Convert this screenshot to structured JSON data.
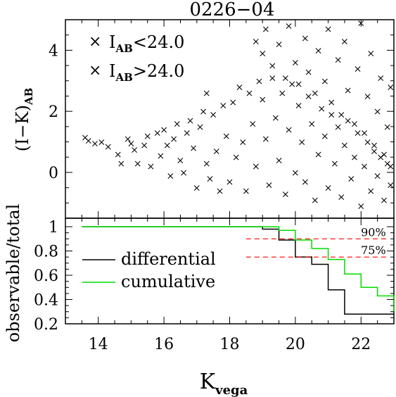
{
  "chart_data": [
    {
      "type": "scatter",
      "title": "0226−04",
      "ylabel": "(I−K)",
      "ylabel_sub": "AB",
      "xlim": [
        13,
        23
      ],
      "ylim": [
        -1.5,
        5
      ],
      "yticks": [
        "4",
        "2",
        "0"
      ],
      "ytick_values": [
        4,
        2,
        0
      ],
      "legend": [
        {
          "label": "I",
          "sub": "AB",
          "rest": "<24.0",
          "color": "#000000"
        },
        {
          "label": "I",
          "sub": "AB",
          "rest": ">24.0",
          "color": "#ff0000"
        }
      ],
      "series": [
        {
          "name": "I_AB<24.0",
          "color": "#000000",
          "points": [
            [
              13.6,
              1.15
            ],
            [
              13.7,
              1.05
            ],
            [
              13.9,
              0.95
            ],
            [
              14.1,
              1.0
            ],
            [
              14.3,
              0.85
            ],
            [
              14.6,
              0.6
            ],
            [
              14.7,
              0.3
            ],
            [
              14.9,
              1.1
            ],
            [
              15.0,
              0.95
            ],
            [
              15.1,
              0.75
            ],
            [
              15.2,
              0.3
            ],
            [
              15.4,
              0.9
            ],
            [
              15.5,
              1.2
            ],
            [
              15.6,
              0.2
            ],
            [
              15.8,
              1.3
            ],
            [
              15.9,
              0.55
            ],
            [
              16.0,
              1.4
            ],
            [
              16.1,
              0.9
            ],
            [
              16.2,
              -0.1
            ],
            [
              16.3,
              1.1
            ],
            [
              16.4,
              1.6
            ],
            [
              16.5,
              0.4
            ],
            [
              16.6,
              0.0
            ],
            [
              16.7,
              1.3
            ],
            [
              16.8,
              1.7
            ],
            [
              16.9,
              0.8
            ],
            [
              17.0,
              -0.5
            ],
            [
              17.1,
              1.5
            ],
            [
              17.2,
              2.0
            ],
            [
              17.3,
              2.6
            ],
            [
              17.3,
              0.3
            ],
            [
              17.4,
              -0.2
            ],
            [
              17.5,
              1.9
            ],
            [
              17.6,
              0.7
            ],
            [
              17.7,
              -0.6
            ],
            [
              17.8,
              2.2
            ],
            [
              17.9,
              1.2
            ],
            [
              18.0,
              -0.3
            ],
            [
              18.1,
              2.3
            ],
            [
              18.2,
              0.5
            ],
            [
              18.3,
              2.8
            ],
            [
              18.4,
              1.0
            ],
            [
              18.5,
              -0.6
            ],
            [
              18.6,
              2.6
            ],
            [
              18.7,
              1.6
            ],
            [
              18.8,
              0.2
            ],
            [
              18.9,
              3.0
            ],
            [
              19.0,
              2.4
            ],
            [
              19.1,
              1.1
            ],
            [
              19.2,
              -0.4
            ],
            [
              19.3,
              3.1
            ],
            [
              19.4,
              1.8
            ],
            [
              19.5,
              0.4
            ],
            [
              19.6,
              2.6
            ],
            [
              19.7,
              -0.7
            ],
            [
              19.8,
              1.4
            ],
            [
              19.9,
              2.9
            ],
            [
              20.0,
              0.0
            ],
            [
              20.1,
              2.2
            ],
            [
              20.2,
              1.0
            ],
            [
              20.3,
              -0.3
            ],
            [
              20.4,
              2.5
            ],
            [
              20.5,
              1.6
            ],
            [
              20.6,
              -0.9
            ],
            [
              20.7,
              0.6
            ],
            [
              20.8,
              2.1
            ],
            [
              20.9,
              1.2
            ],
            [
              21.0,
              -0.5
            ],
            [
              21.1,
              1.9
            ],
            [
              21.2,
              0.3
            ],
            [
              21.3,
              1.5
            ],
            [
              21.4,
              -0.8
            ],
            [
              21.5,
              0.9
            ],
            [
              21.6,
              1.7
            ],
            [
              21.7,
              -0.2
            ],
            [
              21.8,
              0.5
            ],
            [
              21.9,
              1.3
            ],
            [
              22.0,
              -1.1
            ],
            [
              22.1,
              0.2
            ],
            [
              22.2,
              1.0
            ],
            [
              22.3,
              -0.6
            ],
            [
              22.4,
              0.7
            ],
            [
              22.5,
              -0.1
            ],
            [
              22.6,
              0.5
            ],
            [
              22.7,
              -0.9
            ],
            [
              22.8,
              0.3
            ],
            [
              22.9,
              -0.4
            ]
          ]
        },
        {
          "name": "I_AB>24.0",
          "color": "#ff0000",
          "points": [
            [
              18.8,
              4.3
            ],
            [
              19.0,
              3.9
            ],
            [
              19.1,
              4.7
            ],
            [
              19.3,
              3.5
            ],
            [
              19.5,
              4.2
            ],
            [
              19.7,
              3.1
            ],
            [
              19.8,
              4.8
            ],
            [
              20.0,
              3.6
            ],
            [
              20.1,
              2.9
            ],
            [
              20.3,
              4.4
            ],
            [
              20.4,
              3.3
            ],
            [
              20.6,
              2.6
            ],
            [
              20.7,
              4.0
            ],
            [
              20.9,
              3.0
            ],
            [
              21.0,
              4.7
            ],
            [
              21.1,
              2.3
            ],
            [
              21.3,
              3.7
            ],
            [
              21.4,
              1.9
            ],
            [
              21.5,
              4.3
            ],
            [
              21.6,
              2.7
            ],
            [
              21.8,
              1.6
            ],
            [
              21.9,
              3.4
            ],
            [
              22.0,
              4.9
            ],
            [
              22.1,
              1.3
            ],
            [
              22.2,
              2.5
            ],
            [
              22.3,
              3.9
            ],
            [
              22.4,
              0.9
            ],
            [
              22.5,
              2.0
            ],
            [
              22.6,
              3.1
            ],
            [
              22.7,
              0.6
            ],
            [
              22.8,
              1.5
            ],
            [
              22.9,
              2.8
            ],
            [
              22.9,
              0.2
            ]
          ]
        }
      ]
    },
    {
      "type": "line",
      "ylabel": "observable/total",
      "xlabel": "K",
      "xlabel_sub": "vega",
      "xlim": [
        13,
        23
      ],
      "ylim": [
        0.2,
        1.07
      ],
      "xticks": [
        "14",
        "16",
        "18",
        "20",
        "22"
      ],
      "xtick_values": [
        14,
        16,
        18,
        20,
        22
      ],
      "yticks": [
        "1",
        "0.8",
        "0.6",
        "0.4",
        "0.2"
      ],
      "ytick_values": [
        1,
        0.8,
        0.6,
        0.4,
        0.2
      ],
      "series": [
        {
          "name": "differential",
          "color": "#000000",
          "steps": [
            [
              13.5,
              1.0
            ],
            [
              18.0,
              1.0
            ],
            [
              19.0,
              0.98
            ],
            [
              19.5,
              0.89
            ],
            [
              20.0,
              0.75
            ],
            [
              20.5,
              0.69
            ],
            [
              21.0,
              0.48
            ],
            [
              21.5,
              0.28
            ],
            [
              23.0,
              0.28
            ]
          ]
        },
        {
          "name": "cumulative",
          "color": "#00dd00",
          "steps": [
            [
              13.5,
              1.0
            ],
            [
              19.0,
              1.0
            ],
            [
              19.5,
              0.97
            ],
            [
              20.0,
              0.89
            ],
            [
              20.5,
              0.82
            ],
            [
              21.0,
              0.73
            ],
            [
              21.5,
              0.61
            ],
            [
              22.0,
              0.5
            ],
            [
              22.5,
              0.43
            ],
            [
              23.0,
              0.4
            ],
            [
              23.2,
              0.3
            ]
          ]
        }
      ],
      "thresholds": [
        {
          "label": "90%",
          "value": 0.9,
          "x_from": 18.5,
          "x_to": 22.8,
          "color": "#ff0000"
        },
        {
          "label": "75%",
          "value": 0.75,
          "x_from": 18.5,
          "x_to": 22.8,
          "color": "#ff0000"
        }
      ],
      "legend": [
        {
          "label": "differential",
          "color": "#000000"
        },
        {
          "label": "cumulative",
          "color": "#00dd00"
        }
      ]
    }
  ]
}
